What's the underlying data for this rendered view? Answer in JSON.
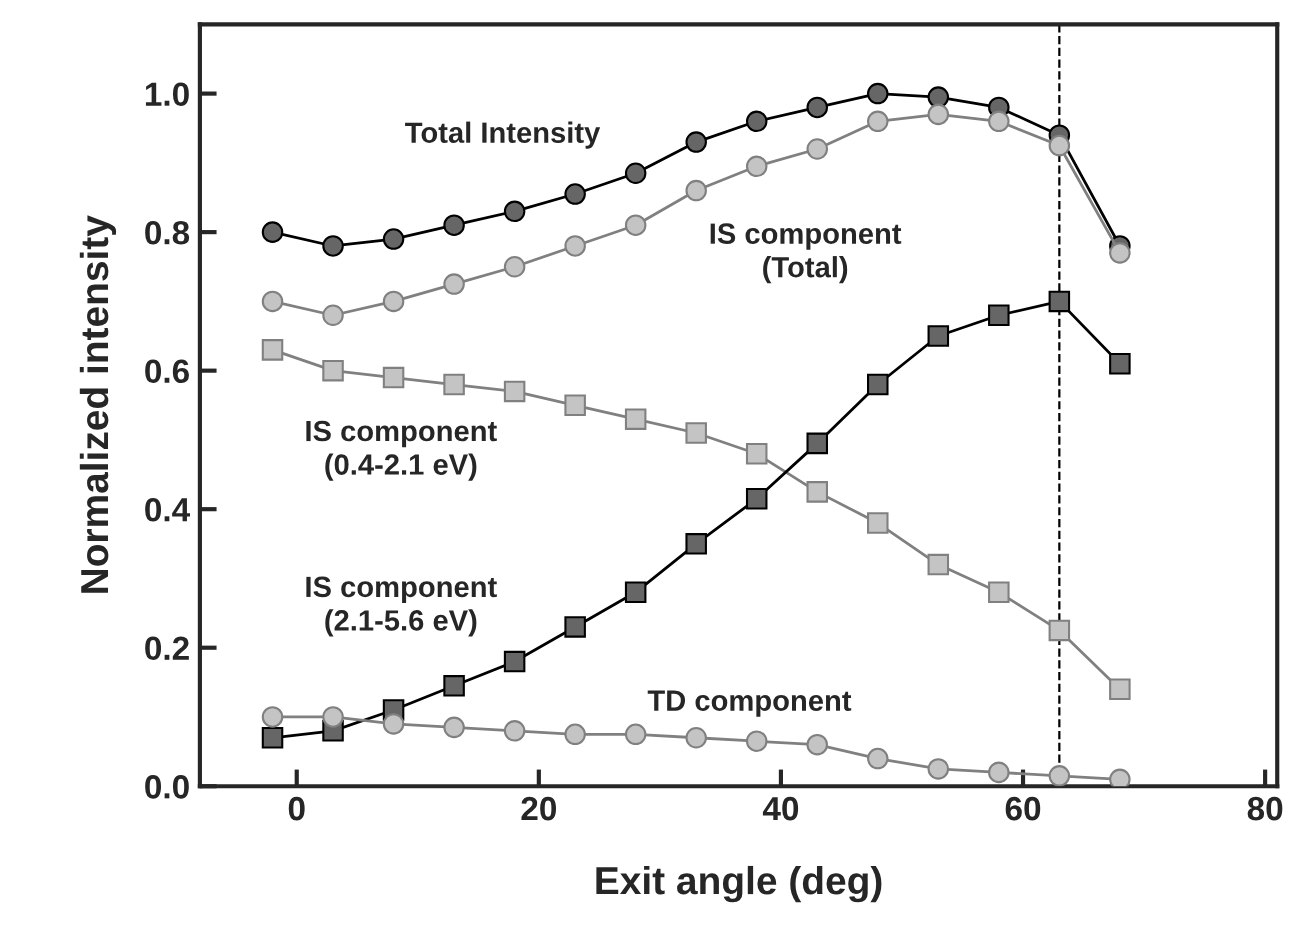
{
  "chart_data": {
    "type": "line",
    "xlabel": "Exit angle (deg)",
    "ylabel": "Normalized intensity",
    "x": [
      -2,
      3,
      8,
      13,
      18,
      23,
      28,
      33,
      38,
      43,
      48,
      53,
      58,
      63,
      68
    ],
    "series": [
      {
        "name": "Total Intensity",
        "color": "#666666",
        "marker": "circle",
        "values": [
          0.8,
          0.78,
          0.79,
          0.81,
          0.83,
          0.855,
          0.885,
          0.93,
          0.96,
          0.98,
          1.0,
          0.995,
          0.98,
          0.94,
          0.78
        ]
      },
      {
        "name": "IS component\n(Total)",
        "color": "#c4c4c4",
        "marker": "circle",
        "values": [
          0.7,
          0.68,
          0.7,
          0.725,
          0.75,
          0.78,
          0.81,
          0.86,
          0.895,
          0.92,
          0.96,
          0.97,
          0.96,
          0.925,
          0.77
        ]
      },
      {
        "name": "IS component\n(0.4-2.1 eV)",
        "color": "#c4c4c4",
        "marker": "square",
        "values": [
          0.63,
          0.6,
          0.59,
          0.58,
          0.57,
          0.55,
          0.53,
          0.51,
          0.48,
          0.425,
          0.38,
          0.32,
          0.28,
          0.225,
          0.14
        ]
      },
      {
        "name": "IS component\n(2.1-5.6 eV)",
        "color": "#666666",
        "marker": "square",
        "values": [
          0.07,
          0.08,
          0.11,
          0.145,
          0.18,
          0.23,
          0.28,
          0.35,
          0.415,
          0.495,
          0.58,
          0.65,
          0.68,
          0.7,
          0.61
        ]
      },
      {
        "name": "TD component",
        "color": "#c4c4c4",
        "marker": "circle",
        "values": [
          0.1,
          0.1,
          0.09,
          0.085,
          0.08,
          0.075,
          0.075,
          0.07,
          0.065,
          0.06,
          0.04,
          0.025,
          0.02,
          0.015,
          0.01
        ]
      }
    ],
    "xlim": [
      -8,
      81
    ],
    "ylim": [
      0,
      1.1
    ],
    "xticks": [
      0,
      20,
      40,
      60,
      80
    ],
    "yticks": [
      {
        "value": 0,
        "label": "0.0"
      },
      {
        "value": 0.2,
        "label": "0.2"
      },
      {
        "value": 0.4,
        "label": "0.4"
      },
      {
        "value": 0.6,
        "label": "0.6"
      },
      {
        "value": 0.8,
        "label": "0.8"
      },
      {
        "value": 1.0,
        "label": "1.0"
      }
    ],
    "ref_lines": [
      {
        "axis": "x",
        "value": 63,
        "line_style": "dashed",
        "color": "#000000"
      }
    ],
    "grid": false,
    "legend": false
  }
}
